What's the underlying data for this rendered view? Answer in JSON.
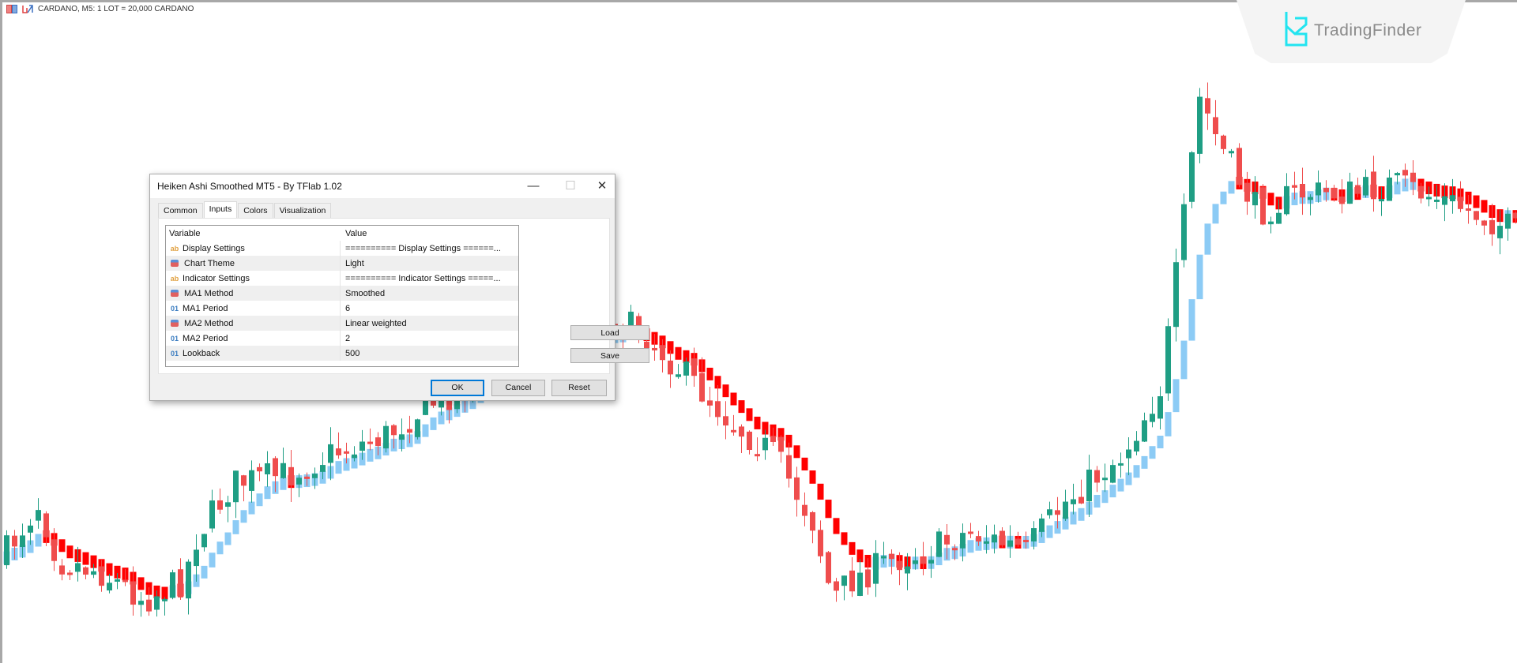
{
  "header": {
    "symbol_text": "CARDANO, M5:  1 LOT = 20,000 CARDANO",
    "icons": [
      "one-click-trading-icon",
      "indicator-icon"
    ]
  },
  "logo": {
    "text": "TradingFinder",
    "accent": "#22e4f0"
  },
  "chart": {
    "type": "candlestick",
    "colors": {
      "bull_candle": "#1f9e84",
      "bear_candle": "#ef4d4d",
      "smoothed_bull": "#8ccbf5",
      "smoothed_bear": "#ff0000"
    }
  },
  "dialog": {
    "title": "Heiken Ashi Smoothed MT5 - By TFlab 1.02",
    "tabs": [
      {
        "label": "Common"
      },
      {
        "label": "Inputs",
        "active": true
      },
      {
        "label": "Colors"
      },
      {
        "label": "Visualization"
      }
    ],
    "table": {
      "headers": {
        "variable": "Variable",
        "value": "Value"
      },
      "rows": [
        {
          "icon": "ab",
          "variable": "Display Settings",
          "value": "========== Display Settings ======..."
        },
        {
          "icon": "enum",
          "variable": "Chart Theme",
          "value": "Light"
        },
        {
          "icon": "ab",
          "variable": "Indicator Settings",
          "value": "========== Indicator Settings =====..."
        },
        {
          "icon": "enum",
          "variable": "MA1 Method",
          "value": "Smoothed"
        },
        {
          "icon": "01",
          "variable": "MA1 Period",
          "value": "6"
        },
        {
          "icon": "enum",
          "variable": "MA2 Method",
          "value": "Linear weighted"
        },
        {
          "icon": "01",
          "variable": "MA2 Period",
          "value": "2"
        },
        {
          "icon": "01",
          "variable": "Lookback",
          "value": "500"
        }
      ]
    },
    "buttons": {
      "load": "Load",
      "save": "Save",
      "ok": "OK",
      "cancel": "Cancel",
      "reset": "Reset"
    },
    "window_controls": {
      "minimize": "—",
      "maximize": "☐",
      "close": "✕"
    }
  }
}
